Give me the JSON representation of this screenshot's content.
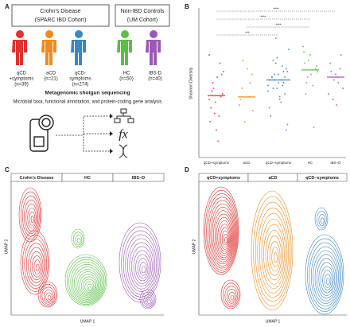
{
  "panel_labels": [
    "A",
    "B",
    "C",
    "D"
  ],
  "panel_a": {
    "cohorts": [
      {
        "title": "Crohn's Disease",
        "subtitle": "(SPARC IBD Cohort)"
      },
      {
        "title": "Non-IBD Controls",
        "subtitle": "(UM Cohort)"
      }
    ],
    "groups": [
      {
        "lines": [
          "qCD",
          "+symptoms",
          "(n=39)"
        ],
        "color": "#e0322f"
      },
      {
        "lines": [
          "aCD",
          "(n=21)"
        ],
        "color": "#f08a1c"
      },
      {
        "lines": [
          "qCD-",
          "symptoms",
          "(n=274)"
        ],
        "color": "#3b86c6"
      },
      {
        "lines": [
          "HC",
          "(n=50)"
        ],
        "color": "#5bbf45"
      },
      {
        "lines": [
          "IBS-D",
          "(n=40)"
        ],
        "color": "#9b59b6"
      }
    ],
    "method_title": "Metagenomic shotgun sequencing",
    "method_subtitle": "Microbial taxa, functional annotation, and protein-coding gene analysis"
  },
  "chart_data": {
    "type": "strip",
    "y_label": "Shannon Diversity",
    "categories": [
      "qCD+symptoms",
      "aCD",
      "qCD−symptoms",
      "HC",
      "IBS−D"
    ],
    "colors": [
      "#e0322f",
      "#f08a1c",
      "#3b86c6",
      "#5bbf45",
      "#9b59b6"
    ],
    "ylim": [
      0,
      5
    ],
    "points": [
      [
        2.0,
        2.3,
        1.5,
        2.8,
        3.3,
        2.2,
        1.2,
        2.6,
        1.9,
        0.5,
        2.1,
        3.0,
        1.7,
        2.4,
        0.9,
        1.4,
        2.9,
        3.6
      ],
      [
        2.1,
        2.9,
        1.8,
        2.4,
        1.2,
        3.1,
        2.6,
        1.6,
        2.0,
        3.4
      ],
      [
        2.7,
        2.9,
        2.5,
        3.1,
        2.3,
        2.8,
        3.3,
        2.0,
        2.6,
        3.0,
        1.7,
        2.4,
        3.5,
        2.7,
        2.2,
        3.8,
        1.4,
        2.9,
        2.6,
        3.2,
        0.9,
        2.5,
        2.8,
        4.2,
        2.1,
        3.0,
        1.1,
        2.7,
        3.4,
        2.4,
        1.9,
        2.8
      ],
      [
        3.0,
        3.3,
        2.8,
        3.6,
        2.5,
        3.1,
        3.9,
        2.2,
        3.4,
        2.9,
        1.0,
        3.2,
        3.7,
        2.6
      ],
      [
        2.8,
        3.1,
        2.4,
        3.3,
        2.0,
        2.9,
        2.6,
        3.6,
        2.2,
        3.0,
        2.7,
        1.8
      ]
    ],
    "medians": [
      2.14,
      2.09,
      2.7,
      3.06,
      2.8
    ],
    "annotations": [
      {
        "label": "****",
        "from": 0,
        "to": 4
      },
      {
        "label": "****",
        "from": 0,
        "to": 3
      },
      {
        "label": "****",
        "from": 1,
        "to": 3
      },
      {
        "label": "***",
        "from": 0,
        "to": 2
      }
    ]
  },
  "panel_c": {
    "facets": [
      "Crohn's Disease",
      "HC",
      "IBS–D"
    ],
    "colors": [
      "#e0322f",
      "#5bbf45",
      "#9b59b6"
    ],
    "x_label": "UMAP 1",
    "y_label": "UMAP 2"
  },
  "panel_d": {
    "facets": [
      "qCD+symptoms",
      "aCD",
      "qCD–symptoms"
    ],
    "colors": [
      "#e0322f",
      "#f08a1c",
      "#3b86c6"
    ],
    "x_label": "UMAP 1",
    "y_label": "UMAP 2"
  }
}
